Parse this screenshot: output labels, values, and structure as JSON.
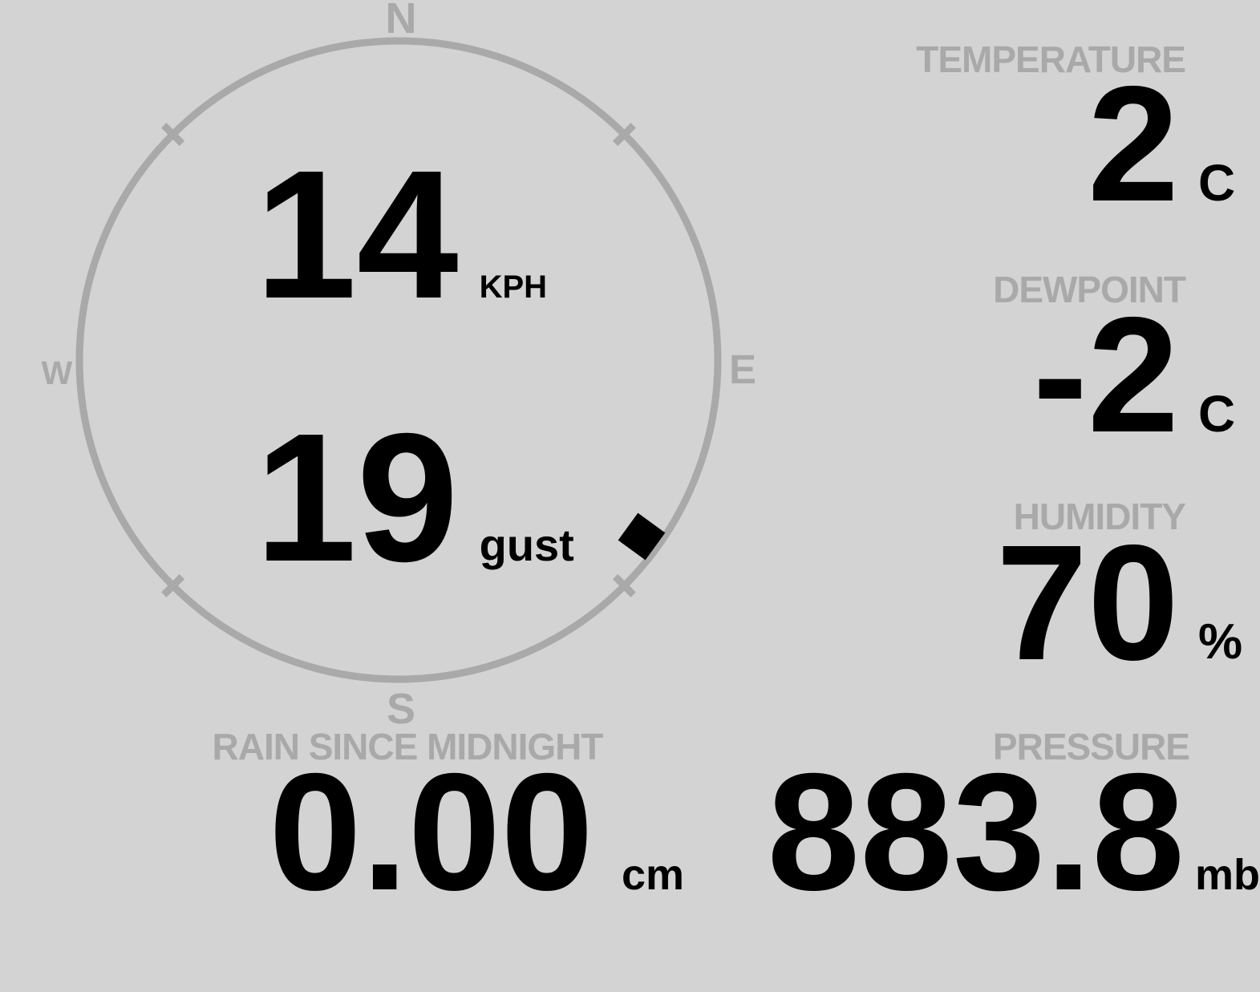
{
  "colors": {
    "background": "#d3d3d3",
    "muted": "#a9a9a9",
    "value_text": "#000000"
  },
  "wind": {
    "speed": "14",
    "speed_unit": "KPH",
    "gust": "19",
    "gust_unit": "gust",
    "direction_deg": 126,
    "compass": {
      "north": "N",
      "south": "S",
      "east": "E",
      "west": "W"
    }
  },
  "metrics": [
    {
      "id": "temperature",
      "label": "TEMPERATURE",
      "value": "2",
      "unit": "C"
    },
    {
      "id": "dewpoint",
      "label": "DEWPOINT",
      "value": "-2",
      "unit": "C"
    },
    {
      "id": "humidity",
      "label": "HUMIDITY",
      "value": "70",
      "unit": "%"
    },
    {
      "id": "rain_since_midnight",
      "label": "RAIN SINCE MIDNIGHT",
      "value": "0.00",
      "unit": "cm"
    },
    {
      "id": "pressure",
      "label": "PRESSURE",
      "value": "883.8",
      "unit": "mb"
    }
  ]
}
